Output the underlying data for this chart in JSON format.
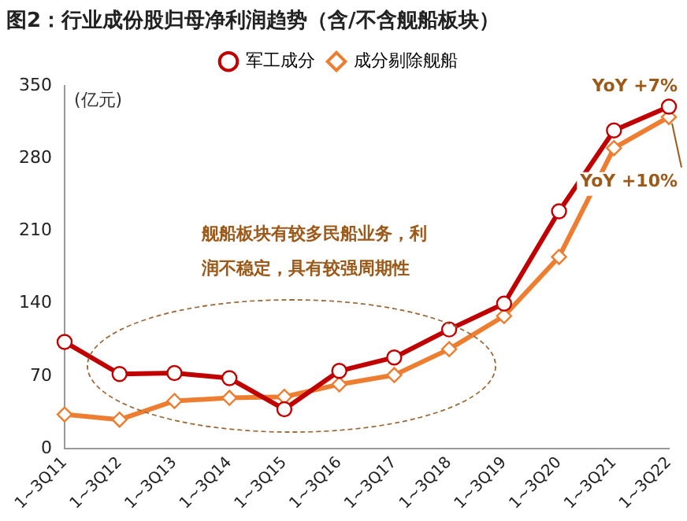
{
  "chart_data": {
    "type": "line",
    "title": "图2：行业成份股归母净利润趋势（含/不含舰船板块）",
    "ylabel": "(亿元)",
    "categories": [
      "1~3Q11",
      "1~3Q12",
      "1~3Q13",
      "1~3Q14",
      "1~3Q15",
      "1~3Q16",
      "1~3Q17",
      "1~3Q18",
      "1~3Q19",
      "1~3Q20",
      "1~3Q21",
      "1~3Q22"
    ],
    "series": [
      {
        "name": "军工成分",
        "color": "#c00000",
        "marker": "circle",
        "values": [
          103,
          72,
          73,
          68,
          38,
          75,
          88,
          115,
          140,
          229,
          307,
          330
        ]
      },
      {
        "name": "成分剔除舰船",
        "color": "#ed7d31",
        "marker": "diamond",
        "values": [
          33,
          28,
          46,
          49,
          50,
          62,
          71,
          96,
          128,
          185,
          290,
          320
        ]
      }
    ],
    "ylim": [
      0,
      350
    ],
    "yticks": [
      0,
      70,
      140,
      210,
      280,
      350
    ],
    "grid": false,
    "legend": "top",
    "line_style": "solid",
    "annotations": [
      "舰船板块有较多民船业务，利润不稳定，具有较强周期性",
      {
        "text": "YoY +7%",
        "x": "1~3Q22",
        "y": 330
      },
      {
        "text": "YoY +10%",
        "x": "1~3Q22",
        "y": 320
      }
    ]
  }
}
